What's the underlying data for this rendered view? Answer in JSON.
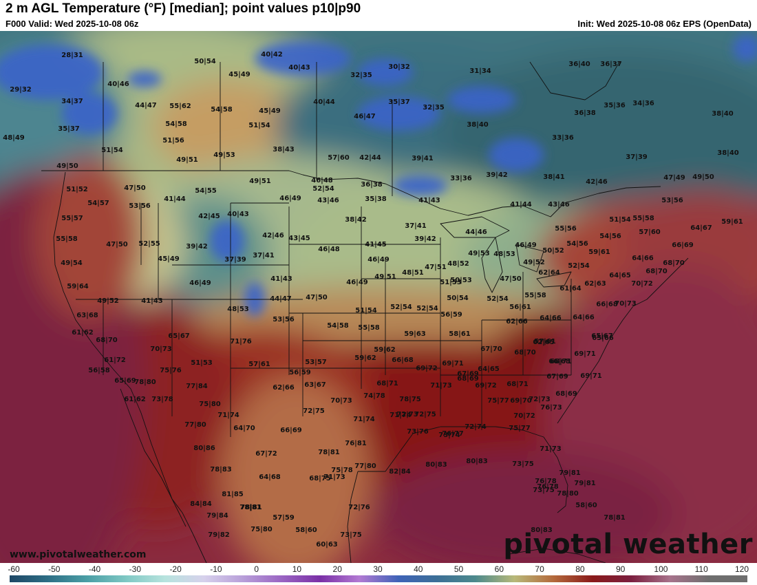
{
  "header": {
    "title": "2 m AGL Temperature (°F) [median]; point values p10|p90",
    "valid": "F000 Valid: Wed 2025-10-08 06z",
    "init": "Init: Wed 2025-10-08 06z EPS (OpenData)"
  },
  "footer": {
    "website": "www.pivotalweather.com",
    "logo": "pivotal weather"
  },
  "colorbar": {
    "ticks": [
      "-60",
      "-50",
      "-40",
      "-30",
      "-20",
      "-10",
      "0",
      "10",
      "20",
      "30",
      "40",
      "50",
      "60",
      "70",
      "80",
      "90",
      "100",
      "110",
      "120"
    ],
    "colors": [
      "#1e4766",
      "#2e6f86",
      "#4b9fa6",
      "#7fc8c4",
      "#b7e3de",
      "#d7d1ec",
      "#b89fd9",
      "#9a65c3",
      "#7a2fa6",
      "#b27ad3",
      "#3f63b8",
      "#3c6f97",
      "#4d8a8c",
      "#b8b97a",
      "#b46a3c",
      "#8a1a1a",
      "#7c1f3f",
      "#a8738c",
      "#6e6e6e"
    ]
  },
  "points": [
    {
      "label": "28|31"
    },
    {
      "label": "29|32"
    },
    {
      "label": "34|37"
    },
    {
      "label": "35|37"
    },
    {
      "label": "40|46"
    },
    {
      "label": "50|54"
    },
    {
      "label": "40|42"
    },
    {
      "label": "45|49"
    },
    {
      "label": "40|43"
    },
    {
      "label": "30|32"
    },
    {
      "label": "32|35"
    },
    {
      "label": "31|34"
    },
    {
      "label": "36|40"
    },
    {
      "label": "36|37"
    },
    {
      "label": "44|47"
    },
    {
      "label": "55|62"
    },
    {
      "label": "54|58"
    },
    {
      "label": "45|49"
    },
    {
      "label": "40|44"
    },
    {
      "label": "35|37"
    },
    {
      "label": "32|35"
    },
    {
      "label": "35|36"
    },
    {
      "label": "34|36"
    },
    {
      "label": "36|38"
    },
    {
      "label": "38|40"
    },
    {
      "label": "48|49"
    },
    {
      "label": "54|58"
    },
    {
      "label": "51|54"
    },
    {
      "label": "46|47"
    },
    {
      "label": "38|40"
    },
    {
      "label": "33|36"
    },
    {
      "label": "51|54"
    },
    {
      "label": "51|56"
    },
    {
      "label": "38|43"
    },
    {
      "label": "49|51"
    },
    {
      "label": "49|53"
    },
    {
      "label": "57|60"
    },
    {
      "label": "42|44"
    },
    {
      "label": "39|41"
    },
    {
      "label": "37|39"
    },
    {
      "label": "38|40"
    },
    {
      "label": "49|50"
    },
    {
      "label": "51|52"
    },
    {
      "label": "52|54"
    },
    {
      "label": "47|50"
    },
    {
      "label": "54|55"
    },
    {
      "label": "49|51"
    },
    {
      "label": "46|48"
    },
    {
      "label": "36|38"
    },
    {
      "label": "33|36"
    },
    {
      "label": "39|42"
    },
    {
      "label": "38|41"
    },
    {
      "label": "42|46"
    },
    {
      "label": "47|49"
    },
    {
      "label": "49|50"
    },
    {
      "label": "54|57"
    },
    {
      "label": "53|56"
    },
    {
      "label": "41|44"
    },
    {
      "label": "46|49"
    },
    {
      "label": "43|46"
    },
    {
      "label": "35|38"
    },
    {
      "label": "41|43"
    },
    {
      "label": "41|44"
    },
    {
      "label": "43|46"
    },
    {
      "label": "53|56"
    },
    {
      "label": "55|57"
    },
    {
      "label": "42|45"
    },
    {
      "label": "40|43"
    },
    {
      "label": "38|42"
    },
    {
      "label": "37|41"
    },
    {
      "label": "51|54"
    },
    {
      "label": "55|58"
    },
    {
      "label": "64|67"
    },
    {
      "label": "59|61"
    },
    {
      "label": "55|58"
    },
    {
      "label": "47|50"
    },
    {
      "label": "52|55"
    },
    {
      "label": "39|42"
    },
    {
      "label": "42|46"
    },
    {
      "label": "43|45"
    },
    {
      "label": "39|42"
    },
    {
      "label": "44|46"
    },
    {
      "label": "55|56"
    },
    {
      "label": "57|60"
    },
    {
      "label": "54|56"
    },
    {
      "label": "54|56"
    },
    {
      "label": "49|54"
    },
    {
      "label": "45|49"
    },
    {
      "label": "37|39"
    },
    {
      "label": "37|41"
    },
    {
      "label": "46|48"
    },
    {
      "label": "41|45"
    },
    {
      "label": "46|49"
    },
    {
      "label": "46|49"
    },
    {
      "label": "50|52"
    },
    {
      "label": "59|61"
    },
    {
      "label": "66|69"
    },
    {
      "label": "64|66"
    },
    {
      "label": "68|70"
    },
    {
      "label": "46|49"
    },
    {
      "label": "49|53"
    },
    {
      "label": "48|53"
    },
    {
      "label": "48|52"
    },
    {
      "label": "49|52"
    },
    {
      "label": "52|54"
    },
    {
      "label": "64|65"
    },
    {
      "label": "68|70"
    },
    {
      "label": "59|64"
    },
    {
      "label": "41|43"
    },
    {
      "label": "46|49"
    },
    {
      "label": "49|51"
    },
    {
      "label": "48|51"
    },
    {
      "label": "47|51"
    },
    {
      "label": "50|53"
    },
    {
      "label": "47|50"
    },
    {
      "label": "62|64"
    },
    {
      "label": "62|63"
    },
    {
      "label": "70|72"
    },
    {
      "label": "49|52"
    },
    {
      "label": "41|43"
    },
    {
      "label": "44|47"
    },
    {
      "label": "47|50"
    },
    {
      "label": "51|53"
    },
    {
      "label": "61|64"
    },
    {
      "label": "55|58"
    },
    {
      "label": "48|53"
    },
    {
      "label": "51|54"
    },
    {
      "label": "52|54"
    },
    {
      "label": "52|54"
    },
    {
      "label": "50|54"
    },
    {
      "label": "52|54"
    },
    {
      "label": "56|61"
    },
    {
      "label": "66|68"
    },
    {
      "label": "70|73"
    },
    {
      "label": "63|68"
    },
    {
      "label": "53|56"
    },
    {
      "label": "56|59"
    },
    {
      "label": "64|66"
    },
    {
      "label": "62|66"
    },
    {
      "label": "64|66"
    },
    {
      "label": "61|62"
    },
    {
      "label": "65|67"
    },
    {
      "label": "54|58"
    },
    {
      "label": "55|58"
    },
    {
      "label": "59|63"
    },
    {
      "label": "58|61"
    },
    {
      "label": "62|65"
    },
    {
      "label": "65|67"
    },
    {
      "label": "68|70"
    },
    {
      "label": "71|76"
    },
    {
      "label": "57|61"
    },
    {
      "label": "65|66"
    },
    {
      "label": "70|73"
    },
    {
      "label": "66|68"
    },
    {
      "label": "59|62"
    },
    {
      "label": "67|70"
    },
    {
      "label": "68|70"
    },
    {
      "label": "61|72"
    },
    {
      "label": "53|57"
    },
    {
      "label": "59|62"
    },
    {
      "label": "66|68"
    },
    {
      "label": "69|71"
    },
    {
      "label": "68|69"
    },
    {
      "label": "69|71"
    },
    {
      "label": "51|53"
    },
    {
      "label": "57|61"
    },
    {
      "label": "56|59"
    },
    {
      "label": "75|76"
    },
    {
      "label": "69|72"
    },
    {
      "label": "67|69"
    },
    {
      "label": "68|71"
    },
    {
      "label": "67|69"
    },
    {
      "label": "69|71"
    },
    {
      "label": "64|65"
    },
    {
      "label": "78|80"
    },
    {
      "label": "56|58"
    },
    {
      "label": "65|69"
    },
    {
      "label": "68|71"
    },
    {
      "label": "77|84"
    },
    {
      "label": "62|66"
    },
    {
      "label": "63|67"
    },
    {
      "label": "71|73"
    },
    {
      "label": "69|72"
    },
    {
      "label": "68|71"
    },
    {
      "label": "68|69"
    },
    {
      "label": "61|62"
    },
    {
      "label": "73|78"
    },
    {
      "label": "74|78"
    },
    {
      "label": "78|75"
    },
    {
      "label": "75|77"
    },
    {
      "label": "69|70"
    },
    {
      "label": "72|73"
    },
    {
      "label": "75|80"
    },
    {
      "label": "70|73"
    },
    {
      "label": "76|73"
    },
    {
      "label": "71|74"
    },
    {
      "label": "71|74"
    },
    {
      "label": "72|75"
    },
    {
      "label": "71|74"
    },
    {
      "label": "72|75"
    },
    {
      "label": "72|73"
    },
    {
      "label": "70|72"
    },
    {
      "label": "77|80"
    },
    {
      "label": "64|70"
    },
    {
      "label": "66|69"
    },
    {
      "label": "73|74"
    },
    {
      "label": "72|74"
    },
    {
      "label": "75|77"
    },
    {
      "label": "73|76"
    },
    {
      "label": "76|77"
    },
    {
      "label": "80|86"
    },
    {
      "label": "76|81"
    },
    {
      "label": "67|72"
    },
    {
      "label": "78|81"
    },
    {
      "label": "71|73"
    },
    {
      "label": "78|83"
    },
    {
      "label": "77|80"
    },
    {
      "label": "75|78"
    },
    {
      "label": "82|84"
    },
    {
      "label": "80|83"
    },
    {
      "label": "80|83"
    },
    {
      "label": "73|75"
    },
    {
      "label": "64|68"
    },
    {
      "label": "68|75"
    },
    {
      "label": "79|81"
    },
    {
      "label": "76|78"
    },
    {
      "label": "81|85"
    },
    {
      "label": "76|78"
    },
    {
      "label": "79|81"
    },
    {
      "label": "73|75"
    },
    {
      "label": "71|73"
    },
    {
      "label": "78|80"
    },
    {
      "label": "84|84"
    },
    {
      "label": "78|81"
    },
    {
      "label": "72|76"
    },
    {
      "label": "78|81"
    },
    {
      "label": "79|84"
    },
    {
      "label": "57|59"
    },
    {
      "label": "58|60"
    },
    {
      "label": "79|82"
    },
    {
      "label": "75|80"
    },
    {
      "label": "78|81"
    },
    {
      "label": "58|60"
    },
    {
      "label": "73|75"
    },
    {
      "label": "80|83"
    },
    {
      "label": "60|63"
    }
  ]
}
